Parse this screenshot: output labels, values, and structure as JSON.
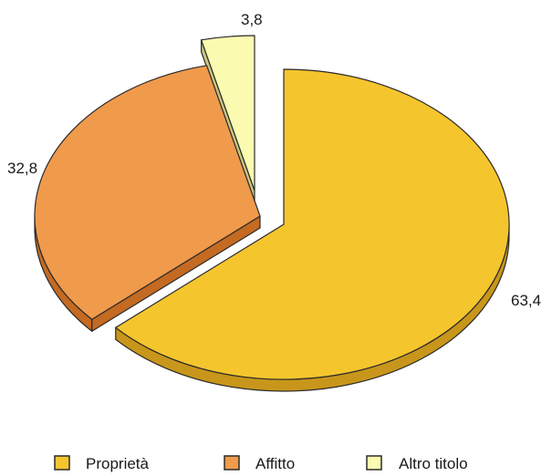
{
  "chart_data": {
    "type": "pie",
    "style": "3d-exploded",
    "legend_position": "bottom",
    "slices": [
      {
        "label": "Proprietà",
        "value": 63.4,
        "value_label": "63,4",
        "color": "#f5c52e",
        "side_color": "#c8961a"
      },
      {
        "label": "Affitto",
        "value": 32.8,
        "value_label": "32,8",
        "color": "#f09a4c",
        "side_color": "#c46a22"
      },
      {
        "label": "Altro titolo",
        "value": 3.8,
        "value_label": "3,8",
        "color": "#fafab0",
        "side_color": "#c9c680"
      }
    ]
  }
}
